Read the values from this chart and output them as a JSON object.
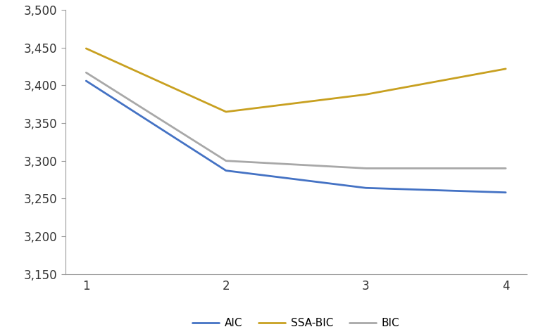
{
  "x": [
    1,
    2,
    3,
    4
  ],
  "AIC": [
    3406,
    3287,
    3264,
    3258
  ],
  "SSA_BIC": [
    3449,
    3365,
    3388,
    3422
  ],
  "BIC": [
    3417,
    3300,
    3290,
    3290
  ],
  "colors": {
    "AIC": "#4472C4",
    "SSA_BIC": "#C8A020",
    "BIC": "#A8A8A8"
  },
  "ylim": [
    3150,
    3500
  ],
  "yticks": [
    3150,
    3200,
    3250,
    3300,
    3350,
    3400,
    3450,
    3500
  ],
  "xticks": [
    1,
    2,
    3,
    4
  ],
  "linewidth": 2.0,
  "legend_labels": [
    "AIC",
    "SSA-BIC",
    "BIC"
  ],
  "background_color": "#ffffff",
  "spine_color": "#999999",
  "tick_color": "#333333",
  "tick_labelsize": 12,
  "legend_fontsize": 11
}
